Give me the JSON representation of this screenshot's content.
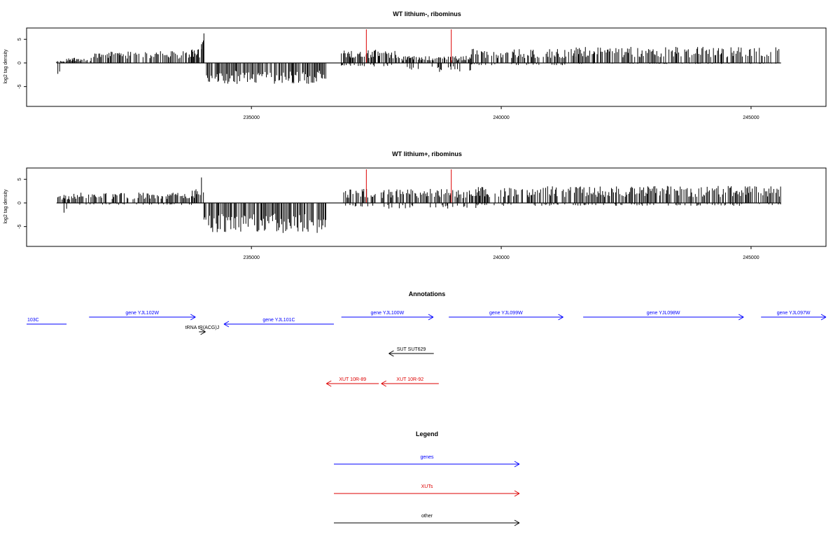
{
  "colors": {
    "genes": "#0000ff",
    "xuts": "#dd0000",
    "other": "#000000",
    "highlight": "#dd0000"
  },
  "chart_data": [
    {
      "type": "bar",
      "title": "WT lithium-, ribominus",
      "ylabel": "log2 tag density",
      "xlim": [
        230500,
        246500
      ],
      "ylim": [
        -9.2,
        7.4
      ],
      "x_ticks": [
        235000,
        240000,
        245000
      ],
      "y_ticks": [
        -5,
        0,
        5
      ],
      "data_range": [
        231100,
        245600
      ],
      "highlight_lines": [
        237300,
        239000
      ],
      "segments": [
        {
          "from": 231100,
          "to": 231300,
          "pos": 0.5,
          "neg": 2.5
        },
        {
          "from": 231300,
          "to": 231800,
          "pos": 1.2,
          "neg": 0
        },
        {
          "from": 231800,
          "to": 233800,
          "pos": 2.5,
          "neg": 0
        },
        {
          "from": 233800,
          "to": 234000,
          "pos": 3.0,
          "neg": 0
        },
        {
          "from": 234000,
          "to": 234050,
          "pos": 6.8,
          "neg": 0
        },
        {
          "from": 234100,
          "to": 236500,
          "pos": 0,
          "neg": 4.5
        },
        {
          "from": 236800,
          "to": 237900,
          "pos": 2.8,
          "neg": 0.8
        },
        {
          "from": 237900,
          "to": 239400,
          "pos": 1.5,
          "neg": 2.0
        },
        {
          "from": 239400,
          "to": 241500,
          "pos": 3.0,
          "neg": 0.5
        },
        {
          "from": 241500,
          "to": 245600,
          "pos": 3.4,
          "neg": 0.2
        }
      ]
    },
    {
      "type": "bar",
      "title": "WT lithium+, ribominus",
      "ylabel": "log2 tag density",
      "xlim": [
        230500,
        246500
      ],
      "ylim": [
        -9.2,
        7.4
      ],
      "x_ticks": [
        235000,
        240000,
        245000
      ],
      "y_ticks": [
        -5,
        0,
        5
      ],
      "data_range": [
        231100,
        245600
      ],
      "highlight_lines": [
        237300,
        239000
      ],
      "segments": [
        {
          "from": 231100,
          "to": 231400,
          "pos": 1.8,
          "neg": 2.2
        },
        {
          "from": 231400,
          "to": 233800,
          "pos": 2.2,
          "neg": 0.4
        },
        {
          "from": 233800,
          "to": 234000,
          "pos": 3.0,
          "neg": 0.5
        },
        {
          "from": 234000,
          "to": 234050,
          "pos": 6.2,
          "neg": 0
        },
        {
          "from": 234050,
          "to": 236500,
          "pos": 0,
          "neg": 6.5
        },
        {
          "from": 236800,
          "to": 239500,
          "pos": 3.0,
          "neg": 1.2
        },
        {
          "from": 239500,
          "to": 245600,
          "pos": 3.6,
          "neg": 0.6
        }
      ]
    }
  ],
  "annotations": {
    "title": "Annotations",
    "features": [
      {
        "label": "103C",
        "type": "gene",
        "from": 230500,
        "to": 231300,
        "dir": "left",
        "row": 1,
        "arrow": false
      },
      {
        "label": "gene YJL102W",
        "type": "gene",
        "from": 231750,
        "to": 233880,
        "dir": "right",
        "row": 0
      },
      {
        "label": "gene YJL101C",
        "type": "gene",
        "from": 234450,
        "to": 236650,
        "dir": "left",
        "row": 1
      },
      {
        "label": "tRNA tR(ACG)J",
        "type": "other",
        "from": 233950,
        "to": 234080,
        "dir": "right",
        "row": 2
      },
      {
        "label": "gene YJL100W",
        "type": "gene",
        "from": 236800,
        "to": 238640,
        "dir": "right",
        "row": 0
      },
      {
        "label": "gene YJL099W",
        "type": "gene",
        "from": 238950,
        "to": 241240,
        "dir": "right",
        "row": 0
      },
      {
        "label": "gene YJL098W",
        "type": "gene",
        "from": 241640,
        "to": 244850,
        "dir": "right",
        "row": 0
      },
      {
        "label": "gene YJL097W",
        "type": "gene",
        "from": 245200,
        "to": 246500,
        "dir": "right",
        "row": 0
      },
      {
        "label": "SUT SUT629",
        "type": "other",
        "from": 237750,
        "to": 238650,
        "dir": "left",
        "row": 3
      },
      {
        "label": "XUT 10R-89",
        "type": "xut",
        "from": 236500,
        "to": 237550,
        "dir": "left",
        "row": 4
      },
      {
        "label": "XUT 10R-92",
        "type": "xut",
        "from": 237600,
        "to": 238750,
        "dir": "left",
        "row": 4
      }
    ]
  },
  "legend": {
    "title": "Legend",
    "items": [
      {
        "label": "genes",
        "type": "gene"
      },
      {
        "label": "XUTs",
        "type": "xut"
      },
      {
        "label": "other",
        "type": "other"
      }
    ]
  }
}
